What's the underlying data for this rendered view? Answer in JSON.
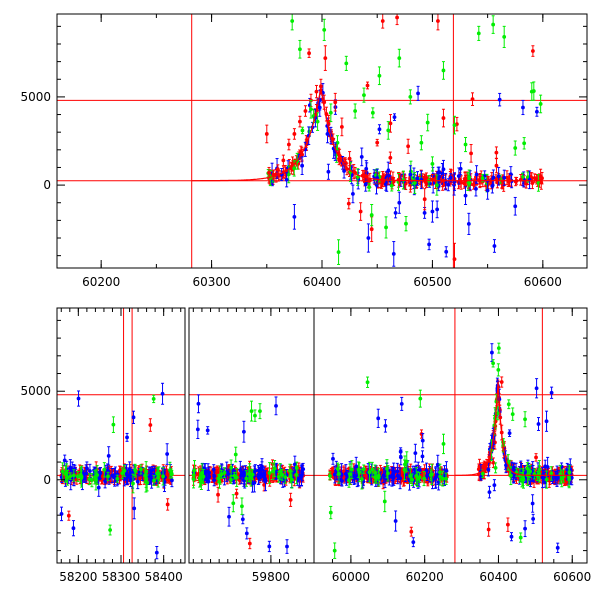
{
  "colors": {
    "red": "#ff0000",
    "green": "#00ee00",
    "blue": "#0000ff",
    "axes": "#000000"
  },
  "chart_data": [
    {
      "type": "scatter",
      "panel": "top",
      "title": "",
      "xlabel": "",
      "ylabel": "",
      "xlim": [
        60160,
        60640
      ],
      "ylim": [
        -4700,
        9700
      ],
      "xticks": [
        60200,
        60300,
        60400,
        60500,
        60600
      ],
      "xtick_labels": [
        "60200",
        "60300",
        "60400",
        "60500",
        "60600"
      ],
      "yticks": [
        0,
        5000
      ],
      "ytick_labels": [
        "0",
        "5000"
      ],
      "error_bars": true,
      "horizontal_lines": [
        4800,
        250
      ],
      "vertical_lines": [
        60282,
        60519
      ],
      "model_curve": {
        "color": "#ff0000",
        "peak_x": 60399,
        "peak_y": 5550,
        "baseline": 250,
        "rise_width": 14,
        "decay_width": 12,
        "x_range": [
          60282,
          60600
        ]
      },
      "series": [
        {
          "color": "#ff0000",
          "points": [
            {
              "x": 60352,
              "y": 700,
              "e": 300
            },
            {
              "x": 60356,
              "y": 600,
              "e": 250
            },
            {
              "x": 60360,
              "y": 900,
              "e": 250
            },
            {
              "x": 60365,
              "y": 1400,
              "e": 300
            },
            {
              "x": 60370,
              "y": 2300,
              "e": 300
            },
            {
              "x": 60375,
              "y": 2900,
              "e": 300
            },
            {
              "x": 60380,
              "y": 3600,
              "e": 300
            },
            {
              "x": 60385,
              "y": 4200,
              "e": 300
            },
            {
              "x": 60390,
              "y": 4800,
              "e": 350
            },
            {
              "x": 60395,
              "y": 5300,
              "e": 350
            },
            {
              "x": 60399,
              "y": 5600,
              "e": 400
            },
            {
              "x": 60402,
              "y": 4700,
              "e": 400
            },
            {
              "x": 60406,
              "y": 3600,
              "e": 350
            },
            {
              "x": 60410,
              "y": 2600,
              "e": 300
            },
            {
              "x": 60415,
              "y": 1800,
              "e": 300
            },
            {
              "x": 60420,
              "y": 1200,
              "e": 300
            },
            {
              "x": 60430,
              "y": 700,
              "e": 300
            },
            {
              "x": 60440,
              "y": 500,
              "e": 300
            },
            {
              "x": 60450,
              "y": 400,
              "e": 300
            },
            {
              "x": 60460,
              "y": 350,
              "e": 300
            },
            {
              "x": 60470,
              "y": 300,
              "e": 300
            },
            {
              "x": 60480,
              "y": 250,
              "e": 300
            },
            {
              "x": 60490,
              "y": 200,
              "e": 300
            },
            {
              "x": 60500,
              "y": 300,
              "e": 300
            },
            {
              "x": 60510,
              "y": 250,
              "e": 300
            },
            {
              "x": 60520,
              "y": 350,
              "e": 300
            },
            {
              "x": 60530,
              "y": 250,
              "e": 300
            },
            {
              "x": 60540,
              "y": 300,
              "e": 300
            },
            {
              "x": 60550,
              "y": 200,
              "e": 300
            },
            {
              "x": 60560,
              "y": 350,
              "e": 300
            },
            {
              "x": 60570,
              "y": 250,
              "e": 300
            },
            {
              "x": 60580,
              "y": 300,
              "e": 300
            },
            {
              "x": 60590,
              "y": 400,
              "e": 300
            },
            {
              "x": 60598,
              "y": 500,
              "e": 400
            },
            {
              "x": 60350,
              "y": 2900,
              "e": 500
            },
            {
              "x": 60455,
              "y": 9300,
              "e": 400
            },
            {
              "x": 60468,
              "y": 9500,
              "e": 400
            },
            {
              "x": 60505,
              "y": 9300,
              "e": 500
            },
            {
              "x": 60591,
              "y": 7600,
              "e": 300
            },
            {
              "x": 60435,
              "y": -1500,
              "e": 500
            },
            {
              "x": 60445,
              "y": -2500,
              "e": 700
            },
            {
              "x": 60462,
              "y": 3500,
              "e": 500
            },
            {
              "x": 60478,
              "y": 2200,
              "e": 400
            },
            {
              "x": 60493,
              "y": -800,
              "e": 600
            },
            {
              "x": 60520,
              "y": -4200,
              "e": 900
            },
            {
              "x": 60535,
              "y": 1800,
              "e": 500
            },
            {
              "x": 60412,
              "y": 4700,
              "e": 500
            },
            {
              "x": 60418,
              "y": 3300,
              "e": 500
            },
            {
              "x": 60425,
              "y": 1500,
              "e": 400
            },
            {
              "x": 60403,
              "y": 7200,
              "e": 700
            },
            {
              "x": 60510,
              "y": 3800,
              "e": 500
            },
            {
              "x": 60558,
              "y": 1100,
              "e": 400
            }
          ]
        },
        {
          "color": "#00ee00",
          "points": [
            {
              "x": 60373,
              "y": 9300,
              "e": 500
            },
            {
              "x": 60380,
              "y": 7700,
              "e": 500
            },
            {
              "x": 60390,
              "y": 4300,
              "e": 500
            },
            {
              "x": 60396,
              "y": 3600,
              "e": 500
            },
            {
              "x": 60402,
              "y": 8800,
              "e": 600
            },
            {
              "x": 60408,
              "y": 4100,
              "e": 500
            },
            {
              "x": 60414,
              "y": 2400,
              "e": 400
            },
            {
              "x": 60422,
              "y": 6900,
              "e": 400
            },
            {
              "x": 60430,
              "y": 4200,
              "e": 400
            },
            {
              "x": 60438,
              "y": 5100,
              "e": 400
            },
            {
              "x": 60445,
              "y": -1700,
              "e": 600
            },
            {
              "x": 60452,
              "y": 6200,
              "e": 500
            },
            {
              "x": 60460,
              "y": 3100,
              "e": 500
            },
            {
              "x": 60470,
              "y": 7200,
              "e": 500
            },
            {
              "x": 60480,
              "y": 5000,
              "e": 400
            },
            {
              "x": 60490,
              "y": 2400,
              "e": 400
            },
            {
              "x": 60500,
              "y": 1200,
              "e": 400
            },
            {
              "x": 60510,
              "y": 6500,
              "e": 500
            },
            {
              "x": 60520,
              "y": 3400,
              "e": 500
            },
            {
              "x": 60530,
              "y": 2300,
              "e": 400
            },
            {
              "x": 60542,
              "y": 8600,
              "e": 400
            },
            {
              "x": 60555,
              "y": 9100,
              "e": 500
            },
            {
              "x": 60565,
              "y": 8400,
              "e": 600
            },
            {
              "x": 60575,
              "y": 2100,
              "e": 400
            },
            {
              "x": 60590,
              "y": 5300,
              "e": 500
            },
            {
              "x": 60598,
              "y": 4600,
              "e": 500
            },
            {
              "x": 60415,
              "y": -3800,
              "e": 700
            },
            {
              "x": 60458,
              "y": -2400,
              "e": 600
            }
          ]
        },
        {
          "color": "#0000ff",
          "points": [
            {
              "x": 60368,
              "y": 300,
              "e": 400
            },
            {
              "x": 60375,
              "y": -1800,
              "e": 700
            },
            {
              "x": 60382,
              "y": 1100,
              "e": 500
            },
            {
              "x": 60388,
              "y": 2800,
              "e": 500
            },
            {
              "x": 60394,
              "y": 3800,
              "e": 500
            },
            {
              "x": 60398,
              "y": 4400,
              "e": 500
            },
            {
              "x": 60405,
              "y": 2900,
              "e": 500
            },
            {
              "x": 60412,
              "y": 1900,
              "e": 500
            },
            {
              "x": 60420,
              "y": 800,
              "e": 400
            },
            {
              "x": 60428,
              "y": -500,
              "e": 500
            },
            {
              "x": 60436,
              "y": 1600,
              "e": 500
            },
            {
              "x": 60442,
              "y": -3000,
              "e": 800
            },
            {
              "x": 60450,
              "y": 400,
              "e": 500
            },
            {
              "x": 60460,
              "y": 800,
              "e": 500
            },
            {
              "x": 60470,
              "y": -1000,
              "e": 600
            },
            {
              "x": 60480,
              "y": 600,
              "e": 500
            },
            {
              "x": 60490,
              "y": 300,
              "e": 500
            },
            {
              "x": 60500,
              "y": -1500,
              "e": 600
            },
            {
              "x": 60510,
              "y": 900,
              "e": 500
            },
            {
              "x": 60520,
              "y": 200,
              "e": 500
            },
            {
              "x": 60530,
              "y": -600,
              "e": 500
            },
            {
              "x": 60540,
              "y": 600,
              "e": 500
            },
            {
              "x": 60550,
              "y": -300,
              "e": 500
            },
            {
              "x": 60560,
              "y": 500,
              "e": 500
            },
            {
              "x": 60575,
              "y": -1200,
              "e": 500
            },
            {
              "x": 60588,
              "y": 300,
              "e": 500
            },
            {
              "x": 60487,
              "y": 5200,
              "e": 400
            },
            {
              "x": 60582,
              "y": 4400,
              "e": 400
            },
            {
              "x": 60465,
              "y": -3900,
              "e": 700
            },
            {
              "x": 60533,
              "y": -2200,
              "e": 600
            }
          ]
        }
      ]
    },
    {
      "type": "scatter",
      "panel": "bottom",
      "title": "",
      "xlabel": "",
      "ylabel": "",
      "broken_x_axis": true,
      "ylim": [
        -4700,
        9700
      ],
      "yticks": [
        0,
        5000
      ],
      "ytick_labels": [
        "0",
        "5000"
      ],
      "error_bars": true,
      "horizontal_lines": [
        4800,
        250
      ],
      "segments": [
        {
          "xlim": [
            58150,
            58450
          ],
          "xticks": [
            58200,
            58300,
            58400
          ],
          "xtick_labels": [
            "58200",
            "58300",
            "58400"
          ],
          "data_range": [
            58160,
            58420
          ],
          "vertical_lines": [
            58306,
            58326
          ]
        },
        {
          "xlim": [
            59610,
            59900
          ],
          "xticks": [
            59800
          ],
          "xtick_labels": [
            "59800"
          ],
          "data_range": [
            59620,
            59875
          ],
          "vertical_lines": []
        },
        {
          "xlim": [
            59900,
            60640
          ],
          "xticks": [
            60000,
            60200,
            60400,
            60600
          ],
          "xtick_labels": [
            "60000",
            "60200",
            "60400",
            "60600"
          ],
          "data_range": [
            59940,
            60600
          ],
          "gap": [
            60260,
            60345
          ],
          "vertical_lines": [
            60282,
            60519
          ],
          "model_curve": {
            "peak_x": 60399,
            "peak_y": 5550,
            "baseline": 250,
            "rise_width": 14,
            "decay_width": 12,
            "x_range": [
              60282,
              60600
            ]
          }
        }
      ]
    }
  ]
}
